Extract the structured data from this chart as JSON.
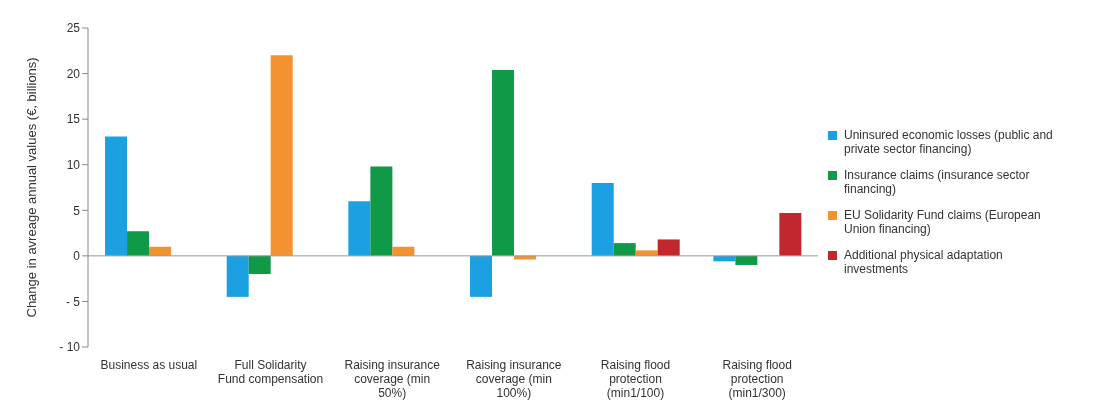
{
  "chart_data": {
    "type": "bar",
    "ylabel": "Change in avreage annual values (€, billions)",
    "categories": [
      "Business as usual",
      "Full Solidarity Fund compensation",
      "Raising insurance coverage (min 50%)",
      "Raising insurance coverage (min 100%)",
      "Raising flood protection (min1/100)",
      "Raising flood protection (min1/300)"
    ],
    "series": [
      {
        "name": "Uninsured economic losses (public and private sector financing)",
        "color": "#1ba1e2",
        "values": [
          13.1,
          -4.5,
          6.0,
          -4.5,
          8.0,
          -0.6
        ]
      },
      {
        "name": "Insurance claims (insurance sector financing)",
        "color": "#109a48",
        "values": [
          2.7,
          -2.0,
          9.8,
          20.4,
          1.4,
          -1.0
        ]
      },
      {
        "name": "EU Solidarity Fund claims (European Union financing)",
        "color": "#f39230",
        "values": [
          1.0,
          22,
          1.0,
          -0.4,
          0.6,
          null
        ]
      },
      {
        "name": "Additional physical adaptation investments",
        "color": "#c1272d",
        "values": [
          null,
          null,
          null,
          null,
          1.8,
          4.7
        ]
      }
    ],
    "ylim": [
      -10,
      25
    ],
    "yticks": [
      {
        "value": -10,
        "label": "- 10"
      },
      {
        "value": -5,
        "label": "- 5"
      },
      0,
      5,
      10,
      15,
      20,
      25
    ],
    "legend": "right"
  }
}
